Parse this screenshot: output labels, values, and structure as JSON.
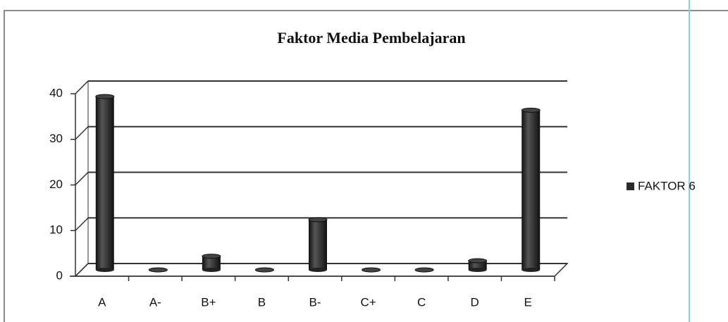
{
  "chart_data": {
    "type": "bar",
    "title": "Faktor Media Pembelajaran",
    "categories": [
      "A",
      "A-",
      "B+",
      "B",
      "B-",
      "C+",
      "C",
      "D",
      "E"
    ],
    "series": [
      {
        "name": "FAKTOR 6",
        "color": "#2a2a2a",
        "values": [
          38,
          0,
          3,
          0,
          11,
          0,
          0,
          2,
          35
        ]
      }
    ],
    "ylim": [
      0,
      40
    ],
    "yticks": [
      0,
      10,
      20,
      30,
      40
    ],
    "grid": true,
    "legend": "right"
  }
}
